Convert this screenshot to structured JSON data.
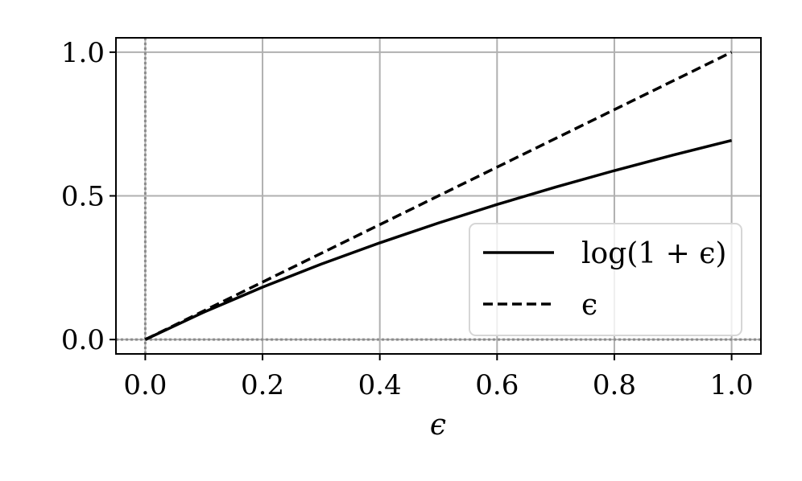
{
  "chart_data": {
    "type": "line",
    "x_ticks": [
      "0.0",
      "0.2",
      "0.4",
      "0.6",
      "0.8",
      "1.0"
    ],
    "y_ticks": [
      "0.0",
      "0.5",
      "1.0"
    ],
    "xlabel": "ϵ",
    "xlim": [
      -0.05,
      1.05
    ],
    "ylim": [
      -0.05,
      1.05
    ],
    "grid": true,
    "legend_position": "lower-right",
    "reference_lines": {
      "x": 0,
      "y": 0,
      "style": "dotted",
      "color": "#8c8c8c"
    },
    "series": [
      {
        "name": "log(1 + ϵ)",
        "style": "solid",
        "color": "#000000",
        "x": [
          0,
          0.1,
          0.2,
          0.3,
          0.4,
          0.5,
          0.6,
          0.7,
          0.8,
          0.9,
          1.0
        ],
        "y": [
          0,
          0.0953,
          0.1823,
          0.2624,
          0.3365,
          0.4055,
          0.47,
          0.5306,
          0.5878,
          0.6419,
          0.6931
        ]
      },
      {
        "name": "ϵ",
        "style": "dashed",
        "color": "#000000",
        "x": [
          0,
          1.0
        ],
        "y": [
          0,
          1.0
        ]
      }
    ]
  }
}
